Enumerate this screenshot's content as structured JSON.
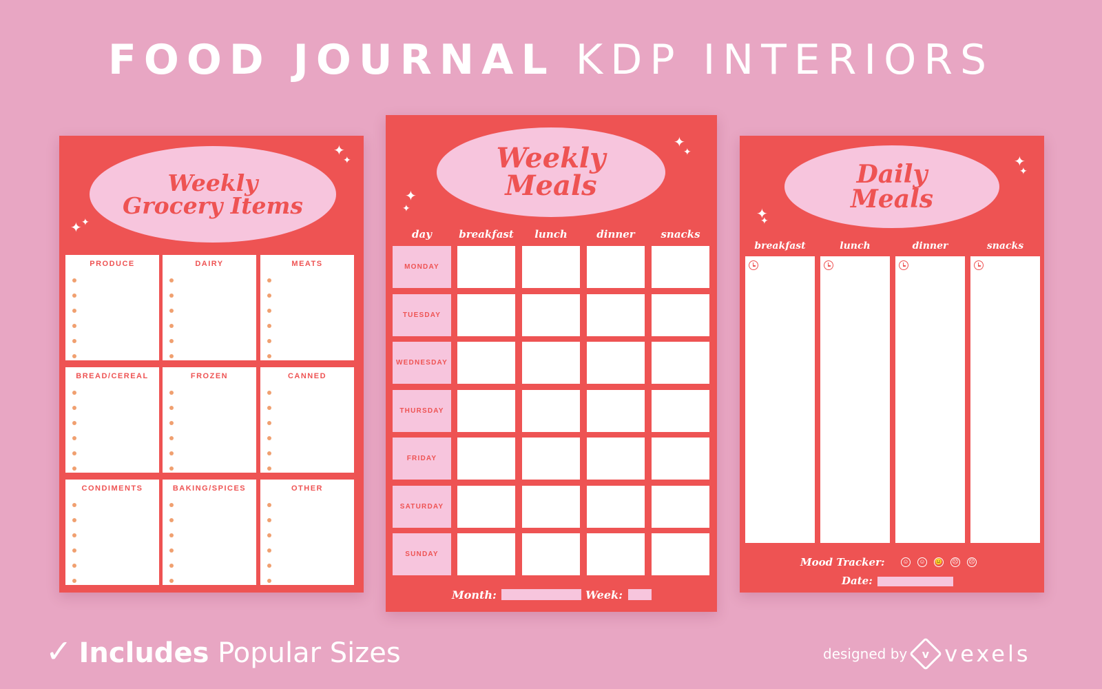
{
  "header": {
    "title_bold": "FOOD JOURNAL",
    "title_light": "KDP INTERIORS"
  },
  "grocery": {
    "title_line1": "Weekly",
    "title_line2": "Grocery Items",
    "categories": [
      "PRODUCE",
      "DAIRY",
      "MEATS",
      "BREAD/CEREAL",
      "FROZEN",
      "CANNED",
      "CONDIMENTS",
      "BAKING/SPICES",
      "OTHER"
    ]
  },
  "weekly": {
    "title_line1": "Weekly",
    "title_line2": "Meals",
    "columns": [
      "day",
      "breakfast",
      "lunch",
      "dinner",
      "snacks"
    ],
    "days": [
      "MONDAY",
      "TUESDAY",
      "WEDNESDAY",
      "THURSDAY",
      "FRIDAY",
      "SATURDAY",
      "SUNDAY"
    ],
    "month_label": "Month:",
    "week_label": "Week:"
  },
  "daily": {
    "title_line1": "Daily",
    "title_line2": "Meals",
    "columns": [
      "breakfast",
      "lunch",
      "dinner",
      "snacks"
    ],
    "mood_label": "Mood Tracker:",
    "moods": [
      "☺",
      "☺",
      "😐",
      "☹",
      "☹"
    ],
    "date_label": "Date:"
  },
  "footer": {
    "check": "✓",
    "includes_bold": "Includes",
    "includes_rest": "Popular Sizes",
    "designed_by": "designed by",
    "brand": "vexels"
  },
  "colors": {
    "background": "#e8a6c3",
    "page": "#ee5353",
    "accent": "#f7c5dd",
    "dot": "#f0a070"
  }
}
